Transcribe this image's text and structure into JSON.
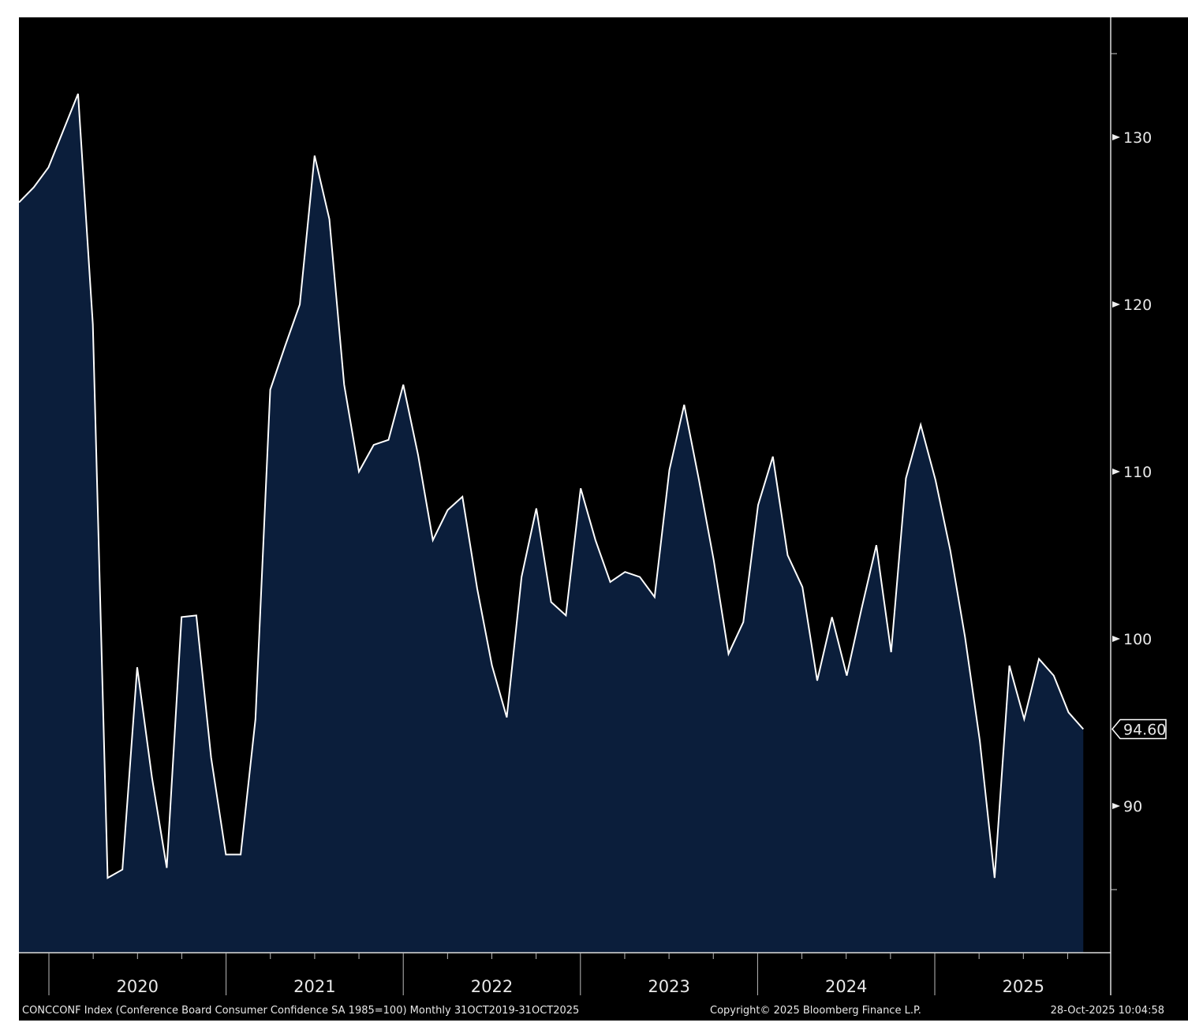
{
  "chart_data": {
    "type": "area",
    "title": "",
    "start": "Oct 2019",
    "frequency": "Monthly",
    "x_tick_labels": [
      "2020",
      "2021",
      "2022",
      "2023",
      "2024",
      "2025"
    ],
    "y_tick_labels": [
      "130",
      "120",
      "110",
      "100",
      "90"
    ],
    "ylim": [
      81,
      137
    ],
    "last_value_label": "94.60",
    "series": [
      {
        "name": "CONCCONF Index",
        "values": [
          126.1,
          127,
          128.2,
          130.4,
          132.6,
          118.8,
          85.7,
          86.2,
          98.3,
          91.7,
          86.3,
          101.3,
          101.4,
          92.9,
          87.1,
          87.1,
          95.2,
          114.9,
          117.5,
          120,
          128.9,
          125.1,
          115.2,
          110,
          111.6,
          111.9,
          115.2,
          111,
          105.9,
          107.7,
          108.5,
          103,
          98.4,
          95.3,
          103.7,
          107.8,
          102.2,
          101.4,
          109,
          105.9,
          103.4,
          104,
          103.7,
          102.5,
          110.1,
          114,
          109.5,
          104.7,
          99.1,
          101,
          108,
          110.9,
          105,
          103.1,
          97.5,
          101.3,
          97.8,
          101.8,
          105.6,
          99.2,
          109.6,
          112.8,
          109.5,
          105.3,
          100.1,
          93.9,
          85.7,
          98.4,
          95.2,
          98.8,
          97.8,
          95.6,
          94.6
        ]
      }
    ],
    "colors": {
      "fill": "#0b1e3b",
      "line": "#ffffff",
      "background": "#000000"
    }
  },
  "footer": {
    "description": "CONCCONF Index (Conference Board Consumer Confidence SA 1985=100) Monthly 31OCT2019-31OCT2025",
    "copyright": "Copyright© 2025 Bloomberg Finance L.P.",
    "timestamp": "28-Oct-2025 10:04:58"
  }
}
